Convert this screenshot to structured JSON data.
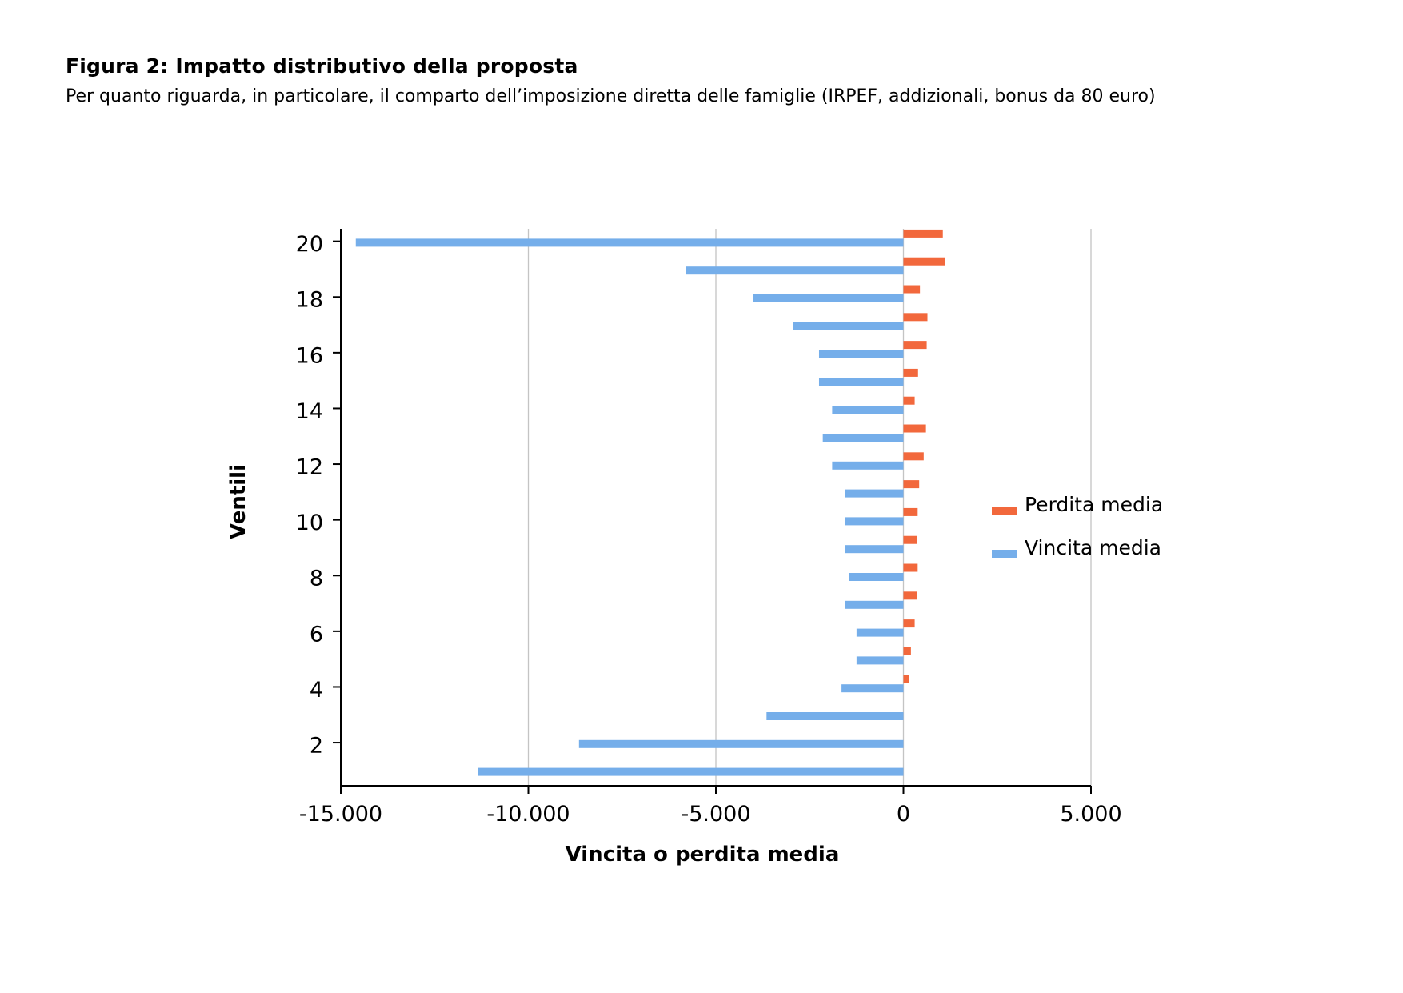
{
  "figure": {
    "title": "Figura 2: Impatto distributivo della proposta",
    "subtitle": "Per quanto riguarda, in particolare, il comparto dell’imposizione diretta delle famiglie (IRPEF, addizionali, bonus da 80 euro)"
  },
  "chart_data": {
    "type": "bar",
    "orientation": "horizontal",
    "categories": [
      1,
      2,
      3,
      4,
      5,
      6,
      7,
      8,
      9,
      10,
      11,
      12,
      13,
      14,
      15,
      16,
      17,
      18,
      19,
      20
    ],
    "series": [
      {
        "name": "Perdita media",
        "color": "#f2683c",
        "values": [
          0,
          0,
          0,
          150,
          200,
          300,
          370,
          380,
          360,
          380,
          420,
          540,
          600,
          300,
          390,
          620,
          640,
          440,
          1100,
          1050
        ]
      },
      {
        "name": "Vincita media",
        "color": "#75aeea",
        "values": [
          -11350,
          -8650,
          -3650,
          -1650,
          -1250,
          -1250,
          -1550,
          -1450,
          -1550,
          -1550,
          -1550,
          -1900,
          -2150,
          -1900,
          -2250,
          -2250,
          -2950,
          -4000,
          -5800,
          -14600
        ]
      }
    ],
    "xlabel": "Vincita o perdita media",
    "ylabel": "Ventili",
    "xlim": [
      -15000,
      5000
    ],
    "xticks": [
      -15000,
      -10000,
      -5000,
      0,
      5000
    ],
    "xtick_labels": [
      "-15.000",
      "-10.000",
      "-5.000",
      "0",
      "5.000"
    ],
    "yticks": [
      2,
      4,
      6,
      8,
      10,
      12,
      14,
      16,
      18,
      20
    ],
    "ytick_labels": [
      "2",
      "4",
      "6",
      "8",
      "10",
      "12",
      "14",
      "16",
      "18",
      "20"
    ],
    "grid": "vertical",
    "legend_position": "right"
  }
}
